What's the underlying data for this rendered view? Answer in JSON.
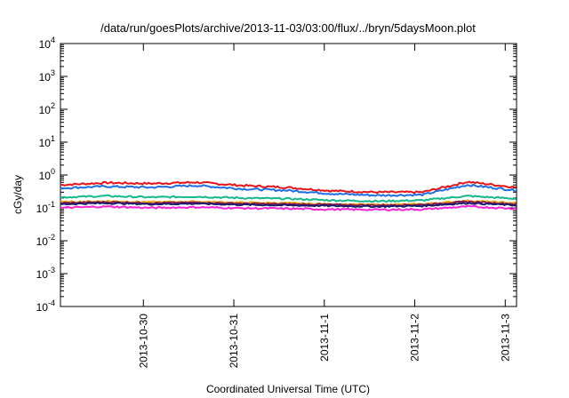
{
  "chart_data": {
    "type": "line",
    "title": "/data/run/goesPlots/archive/2013-11-03/03:00/flux/../bryn/5daysMoon.plot",
    "xlabel": "Coordinated Universal Time (UTC)",
    "ylabel": "cGy/day",
    "yscale": "log",
    "ylim": [
      0.0001,
      10000
    ],
    "xlim": [
      "2013-10-29 02:00",
      "2013-11-03 03:00"
    ],
    "grid": false,
    "legend": "none",
    "y_ticks": [
      {
        "base": "10",
        "exp": "-4"
      },
      {
        "base": "10",
        "exp": "-3"
      },
      {
        "base": "10",
        "exp": "-2"
      },
      {
        "base": "10",
        "exp": "-1"
      },
      {
        "base": "10",
        "exp": "0"
      },
      {
        "base": "10",
        "exp": "1"
      },
      {
        "base": "10",
        "exp": "2"
      },
      {
        "base": "10",
        "exp": "3"
      },
      {
        "base": "10",
        "exp": "4"
      }
    ],
    "x_ticks": [
      "2013-10-30",
      "2013-10-31",
      "2013-11-1",
      "2013-11-2",
      "2013-11-3"
    ],
    "x_tick_dates": [
      "2013-10-30 00:00",
      "2013-10-31 00:00",
      "2013-11-01 00:00",
      "2013-11-02 00:00",
      "2013-11-03 00:00"
    ],
    "x": [
      "2013-10-29 02:00",
      "2013-10-29 14:00",
      "2013-10-30 02:00",
      "2013-10-30 14:00",
      "2013-10-31 02:00",
      "2013-10-31 14:00",
      "2013-11-01 02:00",
      "2013-11-01 14:00",
      "2013-11-02 02:00",
      "2013-11-02 14:00",
      "2013-11-03 03:00"
    ],
    "series": [
      {
        "color": "#e8141a",
        "values": [
          0.5,
          0.58,
          0.55,
          0.6,
          0.48,
          0.42,
          0.33,
          0.3,
          0.3,
          0.62,
          0.42
        ],
        "jitter": 0.06
      },
      {
        "color": "#1f6fe6",
        "values": [
          0.4,
          0.45,
          0.42,
          0.48,
          0.38,
          0.34,
          0.27,
          0.24,
          0.25,
          0.5,
          0.34
        ],
        "jitter": 0.06
      },
      {
        "color": "#14b88a",
        "values": [
          0.21,
          0.23,
          0.21,
          0.22,
          0.2,
          0.19,
          0.17,
          0.16,
          0.17,
          0.23,
          0.19
        ],
        "jitter": 0.05
      },
      {
        "color": "#e6a817",
        "values": [
          0.15,
          0.16,
          0.15,
          0.155,
          0.145,
          0.14,
          0.13,
          0.125,
          0.13,
          0.165,
          0.14
        ],
        "jitter": 0.045
      },
      {
        "color": "#8b1a4a",
        "values": [
          0.14,
          0.15,
          0.14,
          0.145,
          0.135,
          0.13,
          0.125,
          0.12,
          0.125,
          0.155,
          0.13
        ],
        "jitter": 0.045
      },
      {
        "color": "#1a1a6e",
        "values": [
          0.13,
          0.14,
          0.13,
          0.135,
          0.125,
          0.12,
          0.115,
          0.11,
          0.115,
          0.14,
          0.12
        ],
        "jitter": 0.045
      },
      {
        "color": "#ff22d4",
        "values": [
          0.1,
          0.11,
          0.1,
          0.105,
          0.098,
          0.095,
          0.09,
          0.088,
          0.09,
          0.11,
          0.095
        ],
        "jitter": 0.05
      }
    ]
  }
}
